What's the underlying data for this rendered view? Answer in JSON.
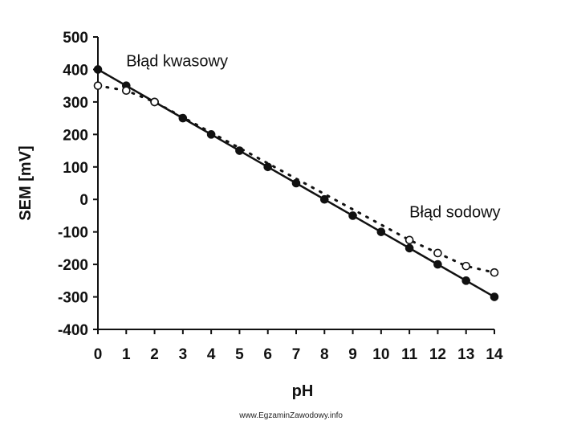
{
  "chart_data": {
    "type": "line",
    "title": "",
    "xlabel": "pH",
    "ylabel": "SEM [mV]",
    "xlim": [
      0,
      14
    ],
    "ylim": [
      -400,
      500
    ],
    "x_ticks": [
      0,
      1,
      2,
      3,
      4,
      5,
      6,
      7,
      8,
      9,
      10,
      11,
      12,
      13,
      14
    ],
    "y_ticks": [
      500,
      400,
      300,
      200,
      100,
      0,
      -100,
      -200,
      -300,
      -400
    ],
    "grid": false,
    "legend": "none",
    "series": [
      {
        "style": "solid line, filled markers",
        "color": "#111111",
        "x": [
          0,
          1,
          2,
          3,
          4,
          5,
          6,
          7,
          8,
          9,
          10,
          11,
          12,
          13,
          14
        ],
        "y": [
          400,
          350,
          300,
          250,
          200,
          150,
          100,
          50,
          0,
          -50,
          -100,
          -150,
          -200,
          -250,
          -300
        ]
      },
      {
        "style": "dotted line, open markers",
        "color": "#111111",
        "x": [
          0,
          1,
          2,
          11,
          12,
          13,
          14
        ],
        "y": [
          350,
          335,
          300,
          -125,
          -165,
          -205,
          -225
        ]
      }
    ],
    "annotations": [
      {
        "text": "Błąd kwasowy",
        "x": 1,
        "y": 410
      },
      {
        "text": "Błąd sodowy",
        "x": 11,
        "y": -55
      }
    ]
  },
  "watermark": "www.EgzaminZawodowy.info"
}
